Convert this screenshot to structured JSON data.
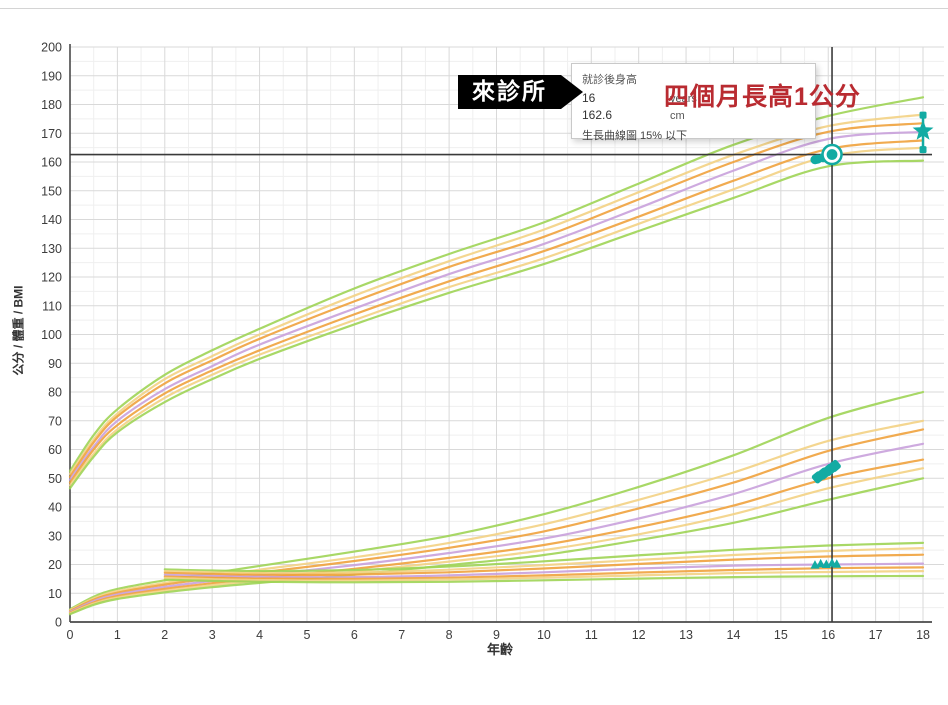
{
  "annotations": {
    "callout": {
      "label": "來診所"
    },
    "highlight_note": {
      "text": "四個月長高1公分",
      "color": "#b92b31"
    }
  },
  "tooltip": {
    "title": "就診後身高",
    "rows": [
      {
        "value": "16",
        "unit": "years"
      },
      {
        "value": "162.6",
        "unit": "cm"
      }
    ],
    "note": "生長曲線圖 15% 以下"
  },
  "chart_data": {
    "type": "line",
    "title": "",
    "xlabel": "年齡",
    "ylabel": "公分 / 體重 / BMI",
    "xlim": [
      0,
      18
    ],
    "ylim": [
      0,
      200
    ],
    "x_major_step": 1,
    "x_minor_step": 0.5,
    "y_major_step": 10,
    "y_minor_step": 5,
    "grid": true,
    "legend": "none",
    "colors": {
      "outer_band": "#9ed455",
      "mid_band": "#f3d284",
      "inner_band": "#efa23d",
      "median": "#c9a1dc",
      "patient_marker": "#12aba3",
      "reference_line": "#3a3a3a",
      "grid_major": "#d9d9d9",
      "grid_minor": "#efefef",
      "axis": "#4a4a4a"
    },
    "families": [
      {
        "name": "height-cm",
        "x": [
          0,
          0.5,
          1,
          2,
          3,
          4,
          6,
          8,
          10,
          12,
          14,
          16,
          18
        ],
        "series": [
          {
            "name": "P97",
            "color": "#9ed455",
            "values": [
              52.5,
              65,
              74,
              86,
              94.5,
              102,
              116,
              128,
              139,
              152.5,
              166,
              176,
              182.5
            ]
          },
          {
            "name": "P90",
            "color": "#f3d284",
            "values": [
              51.5,
              63.5,
              72.5,
              84.5,
              92.5,
              100,
              113.5,
              125.5,
              136.5,
              149.5,
              162.5,
              172.5,
              176.5
            ]
          },
          {
            "name": "P75",
            "color": "#efa23d",
            "values": [
              50.5,
              62.5,
              71.5,
              83,
              91,
              98.5,
              111.5,
              123.5,
              134,
              147,
              160,
              170.5,
              173.5
            ]
          },
          {
            "name": "P50",
            "color": "#c9a1dc",
            "values": [
              49.5,
              61,
              70,
              81,
              89,
              96.5,
              109,
              121,
              131.5,
              144,
              157,
              168,
              170.5
            ]
          },
          {
            "name": "P25",
            "color": "#efa23d",
            "values": [
              48.5,
              60,
              68.5,
              79.5,
              87.5,
              94.5,
              107,
              118.5,
              129,
              141,
              153.5,
              164.5,
              167.5
            ]
          },
          {
            "name": "P10",
            "color": "#f3d284",
            "values": [
              47.5,
              58.5,
              67,
              78,
              86,
              93,
              105,
              116.5,
              126.5,
              138.5,
              150.5,
              162,
              165
            ]
          },
          {
            "name": "P3",
            "color": "#9ed455",
            "values": [
              46.5,
              57.5,
              66,
              76.5,
              84.5,
              91.5,
              103.5,
              114.5,
              124.5,
              136,
              147.5,
              158.5,
              160.5
            ]
          }
        ]
      },
      {
        "name": "weight-kg",
        "x": [
          0,
          0.5,
          1,
          2,
          3,
          4,
          6,
          8,
          10,
          12,
          14,
          16,
          18
        ],
        "series": [
          {
            "name": "P97",
            "color": "#9ed455",
            "values": [
              4.4,
              8.8,
              11.5,
              14.5,
              17,
              19.5,
              24.5,
              30,
              37.5,
              47,
              58,
              71,
              80
            ]
          },
          {
            "name": "P90",
            "color": "#f3d284",
            "values": [
              4.1,
              8.2,
              10.8,
              13.6,
              16,
              18.2,
              22.5,
              27.5,
              34,
              42.5,
              52,
              63,
              70
            ]
          },
          {
            "name": "P75",
            "color": "#efa23d",
            "values": [
              3.8,
              7.8,
              10.2,
              13,
              15.2,
              17.2,
              21.2,
              25.8,
              31.5,
              39.5,
              48.5,
              59.5,
              67
            ]
          },
          {
            "name": "P50",
            "color": "#c9a1dc",
            "values": [
              3.5,
              7.3,
              9.6,
              12.2,
              14.3,
              16.2,
              19.8,
              24,
              29,
              36,
              44.5,
              55,
              62
            ]
          },
          {
            "name": "P25",
            "color": "#efa23d",
            "values": [
              3.2,
              6.8,
              9,
              11.5,
              13.5,
              15.2,
              18.5,
              22.3,
              26.8,
              33,
              40.5,
              50,
              56.5
            ]
          },
          {
            "name": "P10",
            "color": "#f3d284",
            "values": [
              3.0,
              6.4,
              8.5,
              10.9,
              12.8,
              14.4,
              17.5,
              21,
              25,
              30.5,
              37.5,
              46.5,
              53.5
            ]
          },
          {
            "name": "P3",
            "color": "#9ed455",
            "values": [
              2.7,
              6.0,
              8.0,
              10.3,
              12.1,
              13.6,
              16.5,
              19.8,
              23.3,
              28.5,
              34.5,
              42.5,
              50
            ]
          }
        ]
      },
      {
        "name": "bmi",
        "x": [
          2,
          3,
          4,
          6,
          8,
          10,
          12,
          14,
          16,
          18
        ],
        "series": [
          {
            "name": "P97",
            "color": "#9ed455",
            "values": [
              18.3,
              17.9,
              17.7,
              18.1,
              19.3,
              21.1,
              23.2,
              25.1,
              26.6,
              27.5
            ]
          },
          {
            "name": "P90",
            "color": "#f3d284",
            "values": [
              17.7,
              17.3,
              17.0,
              17.2,
              18.2,
              19.8,
              21.6,
              23.3,
              24.7,
              25.7
            ]
          },
          {
            "name": "P75",
            "color": "#efa23d",
            "values": [
              17.1,
              16.7,
              16.4,
              16.5,
              17.3,
              18.6,
              20.2,
              21.7,
              22.8,
              23.4
            ]
          },
          {
            "name": "P50",
            "color": "#c9a1dc",
            "values": [
              16.4,
              16.0,
              15.7,
              15.6,
              16.2,
              17.3,
              18.6,
              19.6,
              20.0,
              20.3
            ]
          },
          {
            "name": "P25",
            "color": "#efa23d",
            "values": [
              15.8,
              15.4,
              15.1,
              15.0,
              15.4,
              16.2,
              17.2,
              18.1,
              18.7,
              19.0
            ]
          },
          {
            "name": "P10",
            "color": "#f3d284",
            "values": [
              15.3,
              14.9,
              14.6,
              14.4,
              14.8,
              15.4,
              16.2,
              17.0,
              17.4,
              17.7
            ]
          },
          {
            "name": "P3",
            "color": "#9ed455",
            "values": [
              14.7,
              14.3,
              14.0,
              13.8,
              14.0,
              14.5,
              15.1,
              15.6,
              15.9,
              16.0
            ]
          }
        ]
      }
    ],
    "patient": {
      "height_history": [
        {
          "age": 15.75,
          "cm": 160.9
        },
        {
          "age": 15.92,
          "cm": 161.6
        }
      ],
      "height_current": {
        "age": 16.08,
        "cm": 162.6
      },
      "predicted_adult_height": {
        "age": 18,
        "cm": 170.8,
        "range_cm": [
          164.3,
          176.3
        ]
      },
      "weight_history": [
        {
          "age": 15.78,
          "kg": 50.3
        },
        {
          "age": 15.9,
          "kg": 51.6
        },
        {
          "age": 16.02,
          "kg": 52.9
        },
        {
          "age": 16.14,
          "kg": 54.3
        }
      ],
      "bmi_history": [
        {
          "age": 15.72,
          "bmi": 19.8
        },
        {
          "age": 15.84,
          "bmi": 20.2
        },
        {
          "age": 15.96,
          "bmi": 20.0
        },
        {
          "age": 16.08,
          "bmi": 20.5
        },
        {
          "age": 16.18,
          "bmi": 20.1
        }
      ]
    },
    "reference_lines": {
      "horizontal_cm": 162.6,
      "vertical_age": 16.08
    }
  }
}
